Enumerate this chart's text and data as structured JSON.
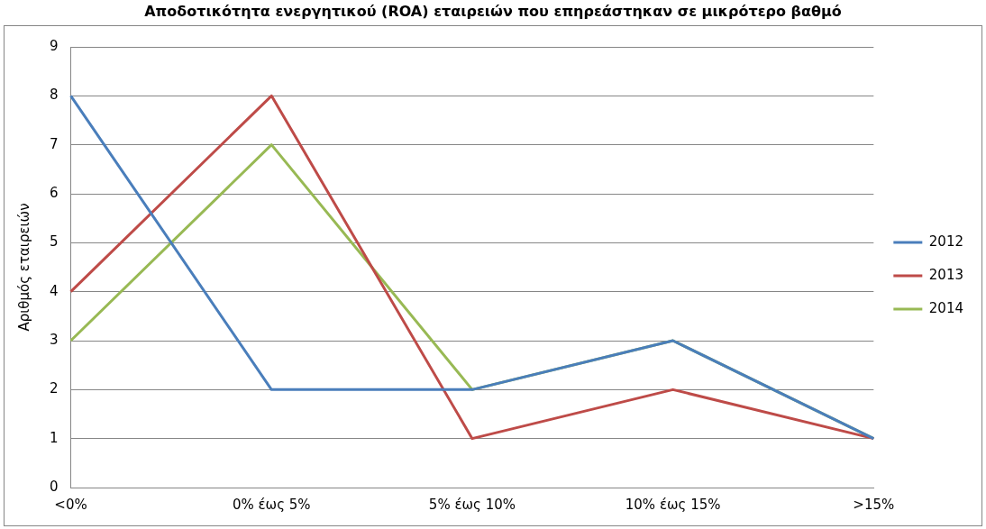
{
  "chart_data": {
    "type": "line",
    "title": "Αποδοτικότητα ενεργητικού (ROA) εταιρειών που επηρεάστηκαν σε μικρότερο βαθμό",
    "ylabel": "Αριθμός εταιρειών",
    "categories": [
      "<0%",
      "0% έως 5%",
      "5% έως 10%",
      "10% έως 15%",
      ">15%"
    ],
    "series": [
      {
        "name": "2012",
        "color": "#4a7ebb",
        "values": [
          8,
          2,
          2,
          3,
          1
        ]
      },
      {
        "name": "2013",
        "color": "#be4b48",
        "values": [
          4,
          8,
          1,
          2,
          1
        ]
      },
      {
        "name": "2014",
        "color": "#98b954",
        "values": [
          3,
          7,
          2,
          3,
          1
        ]
      }
    ],
    "ylim": [
      0,
      9
    ],
    "yticks": [
      0,
      1,
      2,
      3,
      4,
      5,
      6,
      7,
      8,
      9
    ],
    "grid": "y",
    "legend": "right",
    "marker": "none"
  }
}
